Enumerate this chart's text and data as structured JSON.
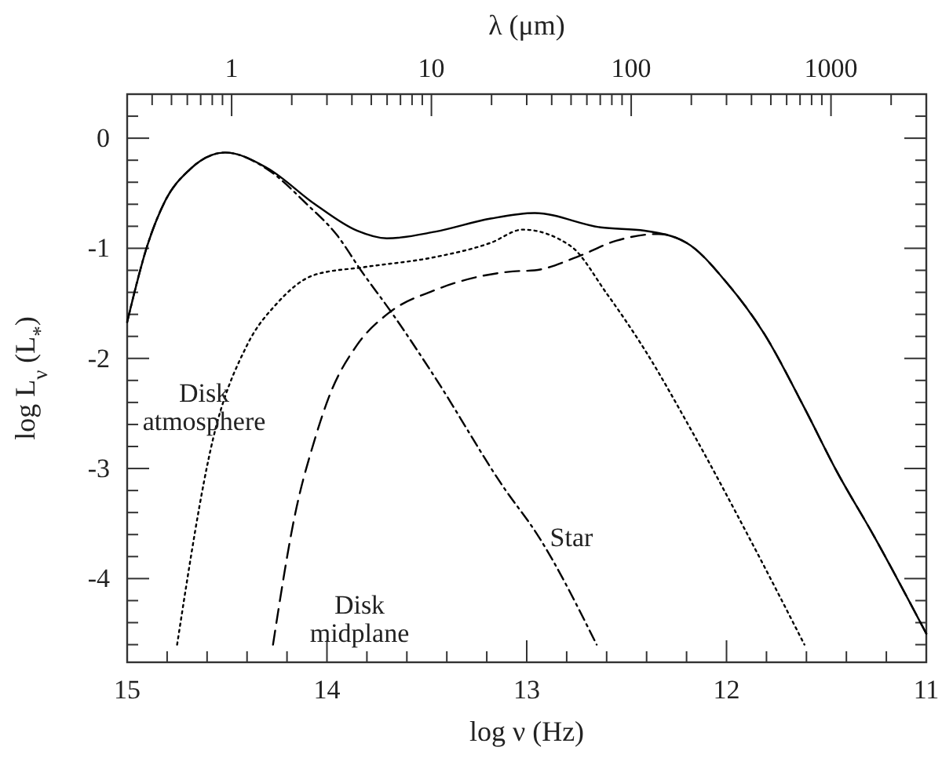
{
  "chart_data": {
    "type": "line",
    "xlabel": "log ν (Hz)",
    "ylabel": "log L$_{ν}$ (L$_{*}$)",
    "x2label": "λ (μm)",
    "xlim": [
      15,
      11
    ],
    "ylim": [
      -4.76,
      0.4
    ],
    "xticks": [
      15,
      {
        "value": 14.8,
        "label": null
      },
      {
        "value": 14.6,
        "label": null
      },
      {
        "value": 14.4,
        "label": null
      },
      {
        "value": 14.2,
        "label": null
      },
      14,
      {
        "value": 13.8,
        "label": null
      },
      {
        "value": 13.6,
        "label": null
      },
      {
        "value": 13.4,
        "label": null
      },
      {
        "value": 13.2,
        "label": null
      },
      13,
      {
        "value": 12.8,
        "label": null
      },
      {
        "value": 12.6,
        "label": null
      },
      {
        "value": 12.4,
        "label": null
      },
      {
        "value": 12.2,
        "label": null
      },
      12,
      {
        "value": 11.8,
        "label": null
      },
      {
        "value": 11.6,
        "label": null
      },
      {
        "value": 11.4,
        "label": null
      },
      {
        "value": 11.2,
        "label": null
      },
      11
    ],
    "yticks": [
      {
        "value": -4.6,
        "label": null
      },
      {
        "value": -4.4,
        "label": null
      },
      {
        "value": -4.2,
        "label": null
      },
      -4,
      {
        "value": -3.8,
        "label": null
      },
      {
        "value": -3.6,
        "label": null
      },
      {
        "value": -3.4,
        "label": null
      },
      {
        "value": -3.2,
        "label": null
      },
      -3,
      {
        "value": -2.8,
        "label": null
      },
      {
        "value": -2.6,
        "label": null
      },
      {
        "value": -2.4,
        "label": null
      },
      {
        "value": -2.2,
        "label": null
      },
      -2,
      {
        "value": -1.8,
        "label": null
      },
      {
        "value": -1.6,
        "label": null
      },
      {
        "value": -1.4,
        "label": null
      },
      {
        "value": -1.2,
        "label": null
      },
      -1,
      {
        "value": -0.8,
        "label": null
      },
      {
        "value": -0.6,
        "label": null
      },
      {
        "value": -0.4,
        "label": null
      },
      {
        "value": -0.2,
        "label": null
      },
      0,
      {
        "value": 0.2,
        "label": null
      }
    ],
    "x2lim": [
      0.3,
      3000
    ],
    "log": "x2",
    "x2ticks": [
      {
        "value": 0.4,
        "label": null
      },
      {
        "value": 0.5,
        "label": null
      },
      {
        "value": 0.6,
        "label": null
      },
      {
        "value": 0.7,
        "label": null
      },
      {
        "value": 0.8,
        "label": null
      },
      {
        "value": 0.9,
        "label": null
      },
      1,
      {
        "value": 2,
        "label": null
      },
      {
        "value": 3,
        "label": null
      },
      {
        "value": 4,
        "label": null
      },
      {
        "value": 5,
        "label": null
      },
      {
        "value": 6,
        "label": null
      },
      {
        "value": 7,
        "label": null
      },
      {
        "value": 8,
        "label": null
      },
      {
        "value": 9,
        "label": null
      },
      10,
      {
        "value": 20,
        "label": null
      },
      {
        "value": 30,
        "label": null
      },
      {
        "value": 40,
        "label": null
      },
      {
        "value": 50,
        "label": null
      },
      {
        "value": 60,
        "label": null
      },
      {
        "value": 70,
        "label": null
      },
      {
        "value": 80,
        "label": null
      },
      {
        "value": 90,
        "label": null
      },
      100,
      {
        "value": 200,
        "label": null
      },
      {
        "value": 300,
        "label": null
      },
      {
        "value": 400,
        "label": null
      },
      {
        "value": 500,
        "label": null
      },
      {
        "value": 600,
        "label": null
      },
      {
        "value": 700,
        "label": null
      },
      {
        "value": 800,
        "label": null
      },
      {
        "value": 900,
        "label": null
      },
      1000,
      {
        "value": 2000,
        "label": null
      },
      {
        "value": 3000,
        "label": null
      }
    ],
    "grid": false,
    "series": [
      {
        "color": "#000000",
        "line_style": "solid",
        "x": [
          15,
          14.9,
          14.81,
          14.69,
          14.51,
          14.3,
          14.06,
          13.85,
          13.7,
          13.46,
          13.18,
          12.96,
          12.63,
          12.41,
          12.2,
          12.0,
          11.81,
          11.61,
          11.45,
          11.26,
          11.0
        ],
        "values": [
          -1.67,
          -0.98,
          -0.57,
          -0.29,
          -0.13,
          -0.27,
          -0.6,
          -0.84,
          -0.91,
          -0.85,
          -0.73,
          -0.68,
          -0.81,
          -0.84,
          -0.95,
          -1.31,
          -1.78,
          -2.45,
          -3.02,
          -3.62,
          -4.5
        ]
      },
      {
        "name": "Star",
        "color": "#000000",
        "line_style": "dashdot",
        "x": [
          15,
          14.9,
          14.81,
          14.69,
          14.51,
          14.3,
          14.1,
          13.95,
          13.83,
          13.67,
          13.46,
          13.12,
          12.94,
          12.65
        ],
        "values": [
          -1.67,
          -0.98,
          -0.57,
          -0.29,
          -0.13,
          -0.28,
          -0.6,
          -0.88,
          -1.2,
          -1.6,
          -2.17,
          -3.16,
          -3.62,
          -4.6
        ]
      },
      {
        "name": "Disk atmosphere",
        "color": "#000000",
        "line_style": "dotted",
        "x": [
          14.75,
          14.57,
          14.4,
          14.25,
          14.06,
          13.81,
          13.46,
          13.18,
          13.02,
          12.78,
          12.6,
          12.41,
          12.18,
          11.86,
          11.61
        ],
        "values": [
          -4.6,
          -2.73,
          -1.88,
          -1.5,
          -1.24,
          -1.17,
          -1.08,
          -0.95,
          -0.83,
          -0.98,
          -1.41,
          -1.92,
          -2.64,
          -3.72,
          -4.6
        ]
      },
      {
        "name": "Disk midplane",
        "color": "#000000",
        "line_style": "dashed",
        "x": [
          14.27,
          14.16,
          14.06,
          13.99,
          13.85,
          13.7,
          13.46,
          13.07,
          12.96,
          12.75,
          12.55,
          12.34,
          12.2,
          12.0,
          11.81,
          11.61,
          11.45,
          11.26,
          11.0
        ],
        "values": [
          -4.6,
          -3.42,
          -2.73,
          -2.35,
          -1.88,
          -1.6,
          -1.38,
          -1.21,
          -1.2,
          -1.08,
          -0.93,
          -0.87,
          -0.95,
          -1.31,
          -1.78,
          -2.45,
          -3.02,
          -3.62,
          -4.5
        ]
      }
    ]
  }
}
